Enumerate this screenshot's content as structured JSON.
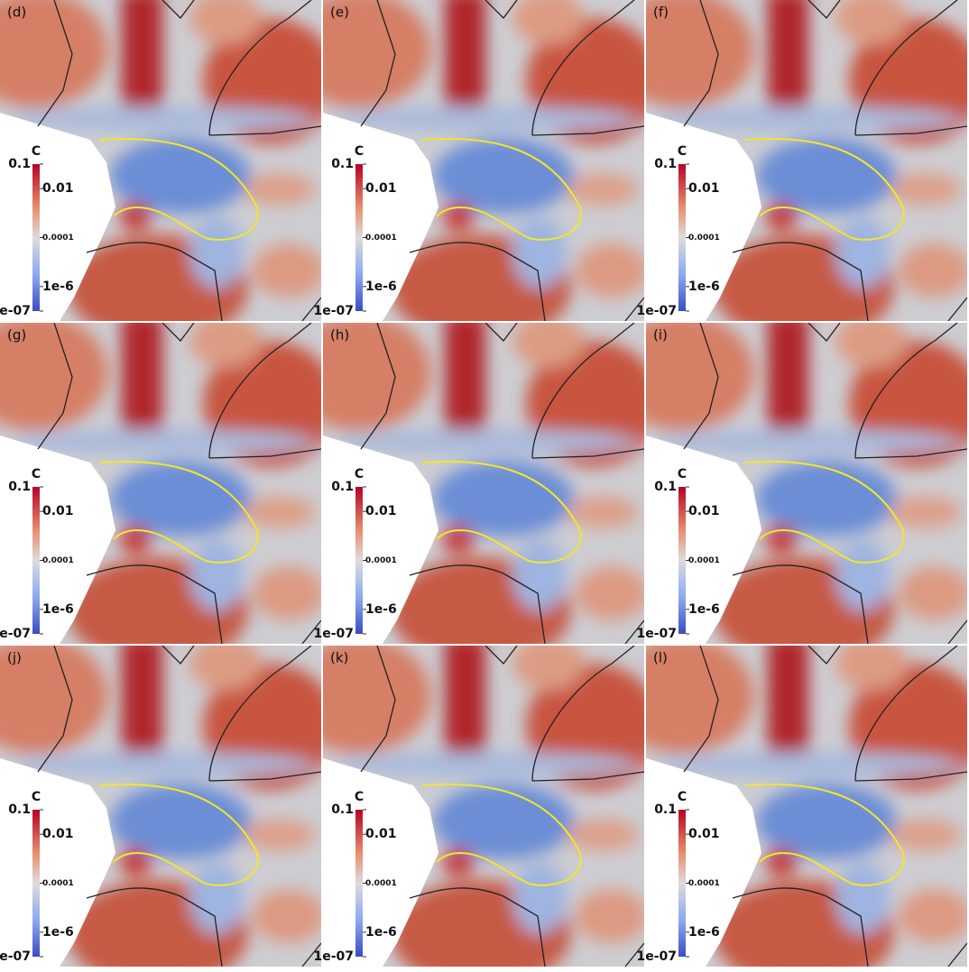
{
  "panels": [
    {
      "label": "(d)"
    },
    {
      "label": "(e)"
    },
    {
      "label": "(f)"
    },
    {
      "label": "(g)"
    },
    {
      "label": "(h)"
    },
    {
      "label": "(i)"
    },
    {
      "label": "(j)"
    },
    {
      "label": "(k)"
    },
    {
      "label": "(l)"
    }
  ],
  "colorbar": {
    "title": "C",
    "log": true,
    "range": [
      1e-07,
      0.1
    ],
    "ticks": [
      0.1,
      0.01,
      0.0001,
      {
        "value": 1e-06,
        "label": "1e-6"
      },
      {
        "value": 1e-07,
        "label": "1e-07"
      }
    ]
  }
}
